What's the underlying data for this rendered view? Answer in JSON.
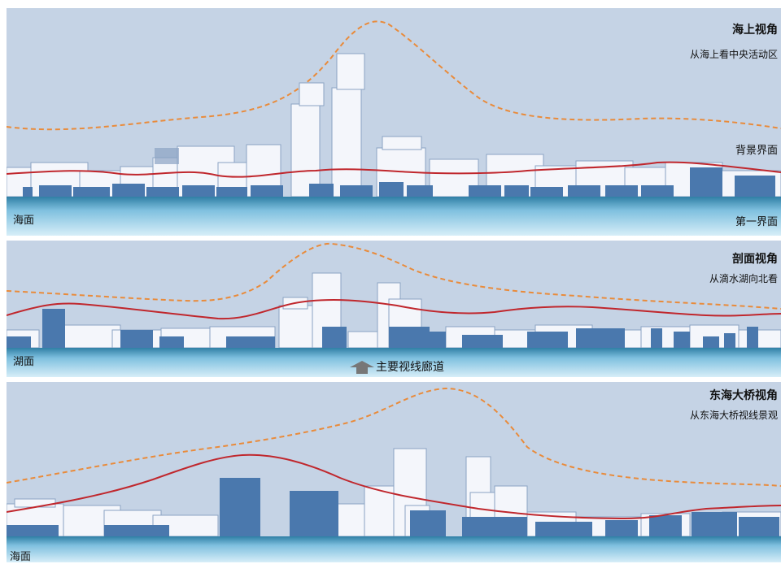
{
  "panels": [
    {
      "title": "海上视角",
      "subtitle": "从海上看中央活动区",
      "water_label": "海面",
      "bg_label": "背景界面",
      "front_label": "第一界面"
    },
    {
      "title": "剖面视角",
      "subtitle": "从滴水湖向北看",
      "water_label": "湖面"
    },
    {
      "title": "东海大桥视角",
      "subtitle": "从东海大桥视线景观",
      "water_label": "海面"
    }
  ],
  "corridor_label": "主要视线廊道",
  "colors": {
    "sky": "#c5d3e5",
    "building_light": "#f4f6fb",
    "building_dark": "#4a78ad",
    "red_line": "#c0272d",
    "orange_dash": "#e98b3b"
  }
}
